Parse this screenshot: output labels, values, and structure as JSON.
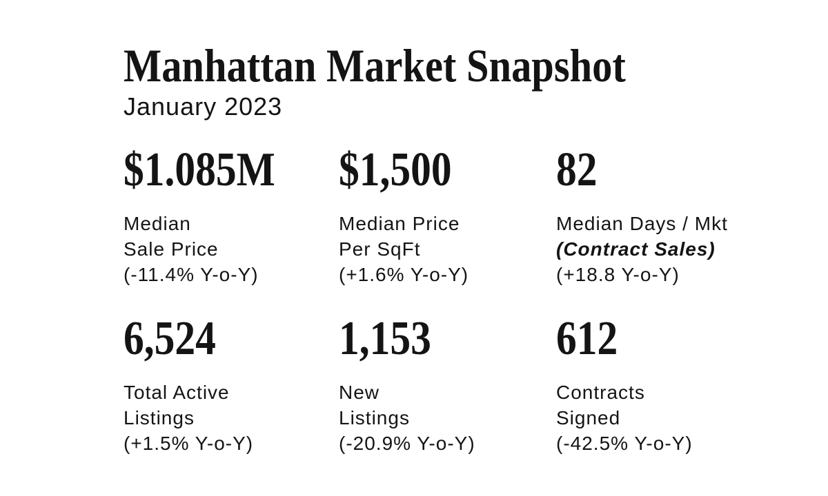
{
  "page": {
    "background_color": "#ffffff",
    "text_color": "#141414"
  },
  "header": {
    "title": "Manhattan Market Snapshot",
    "subtitle": "January 2023"
  },
  "stats": [
    {
      "value": "$1.085M",
      "line1": "Median",
      "line2": "Sale Price",
      "yoy": "(-11.4% Y-o-Y)"
    },
    {
      "value": "$1,500",
      "line1": "Median Price",
      "line2": "Per SqFt",
      "yoy": "(+1.6% Y-o-Y)"
    },
    {
      "value": "82",
      "line1": "Median Days / Mkt",
      "line2": "(Contract Sales)",
      "yoy": "(+18.8 Y-o-Y)"
    },
    {
      "value": "6,524",
      "line1": "Total Active",
      "line2": "Listings",
      "yoy": "(+1.5% Y-o-Y)"
    },
    {
      "value": "1,153",
      "line1": "New",
      "line2": "Listings",
      "yoy": "(-20.9% Y-o-Y)"
    },
    {
      "value": "612",
      "line1": "Contracts",
      "line2": "Signed",
      "yoy": "(-42.5% Y-o-Y)"
    }
  ]
}
